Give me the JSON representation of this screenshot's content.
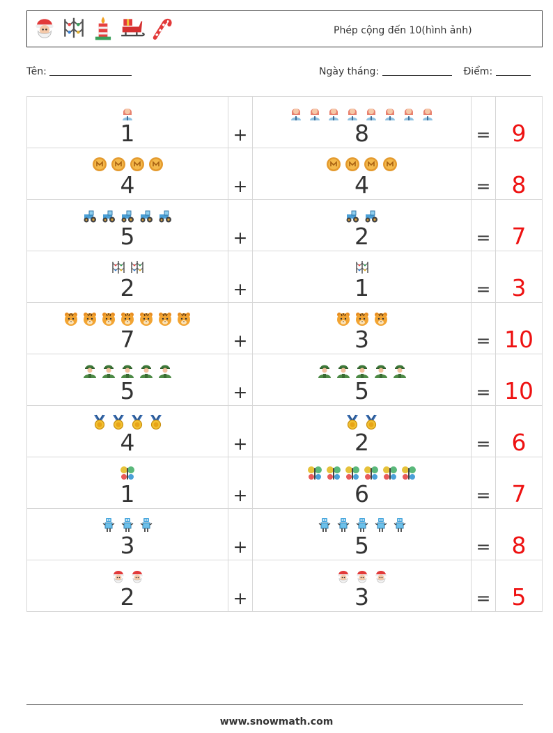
{
  "header": {
    "title": "Phép cộng đến 10(hình ảnh)",
    "icons": [
      "santa-icon",
      "garland-icon",
      "candle-icon",
      "sleigh-icon",
      "candy-cane-icon"
    ]
  },
  "info": {
    "name_label": "Tên:",
    "date_label": "Ngày tháng:",
    "score_label": "Điểm:"
  },
  "operators": {
    "plus": "+",
    "equals": "="
  },
  "problems": [
    {
      "left_icon": "woman-icon",
      "left": 1,
      "right_icon": "woman-icon",
      "right": 8,
      "answer": 9
    },
    {
      "left_icon": "coin-icon",
      "left": 4,
      "right_icon": "coin-icon",
      "right": 4,
      "answer": 8
    },
    {
      "left_icon": "tractor-icon",
      "left": 5,
      "right_icon": "tractor-icon",
      "right": 2,
      "answer": 7
    },
    {
      "left_icon": "garland-icon",
      "left": 2,
      "right_icon": "garland-icon",
      "right": 1,
      "answer": 3
    },
    {
      "left_icon": "tiger-icon",
      "left": 7,
      "right_icon": "tiger-icon",
      "right": 3,
      "answer": 10
    },
    {
      "left_icon": "soldier-icon",
      "left": 5,
      "right_icon": "soldier-icon",
      "right": 5,
      "answer": 10
    },
    {
      "left_icon": "medal-icon",
      "left": 4,
      "right_icon": "medal-icon",
      "right": 2,
      "answer": 6
    },
    {
      "left_icon": "butterfly-icon",
      "left": 1,
      "right_icon": "butterfly-icon",
      "right": 6,
      "answer": 7
    },
    {
      "left_icon": "robot-icon",
      "left": 3,
      "right_icon": "robot-icon",
      "right": 5,
      "answer": 8
    },
    {
      "left_icon": "santa-icon",
      "left": 2,
      "right_icon": "santa-icon",
      "right": 3,
      "answer": 5
    }
  ],
  "footer": {
    "url": "www.snowmath.com"
  }
}
